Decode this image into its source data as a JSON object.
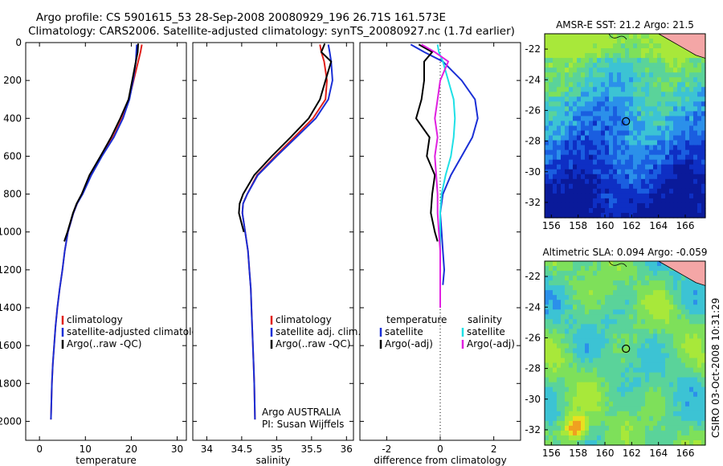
{
  "header": {
    "title_line1": "Argo profile: CS 5901615_53 28-Sep-2008 20080929_196 26.71S 161.573E",
    "title_line2": "Climatology: CARS2006. Satellite-adjusted climatology: synTS_20080927.nc (1.7d earlier)"
  },
  "credit": "CSIRO 03-Oct-2008 10:31:29",
  "colors": {
    "climatology": "#e0201a",
    "satellite": "#1a2fd6",
    "argo": "#000000",
    "satellite_diff_s": "#1fe0e6",
    "argo_diff_s": "#e020e0",
    "land": "#f4a6a6"
  },
  "chart_data": [
    {
      "type": "line",
      "id": "temperature",
      "xlabel": "temperature",
      "xlim": [
        -3,
        32
      ],
      "ylim": [
        0,
        2100
      ],
      "y_reversed": true,
      "xticks": [
        0,
        10,
        20,
        30
      ],
      "yticks": [
        0,
        200,
        400,
        600,
        800,
        1000,
        1200,
        1400,
        1600,
        1800,
        2000
      ],
      "legend": [
        "climatology",
        "satellite-adjusted climatology",
        "Argo(..raw -QC)"
      ],
      "series": [
        {
          "name": "climatology",
          "color_key": "climatology",
          "x": [
            22.3,
            22.0,
            21.5,
            20.5,
            19.5,
            18.0,
            16.0,
            13.5,
            11.2,
            9.3,
            8.2,
            7.4,
            6.2,
            5.5,
            5.0,
            4.4,
            3.9,
            3.5,
            3.2,
            2.9,
            2.7,
            2.5
          ],
          "y": [
            10,
            50,
            100,
            200,
            300,
            400,
            500,
            600,
            700,
            800,
            850,
            900,
            1000,
            1100,
            1200,
            1300,
            1400,
            1500,
            1600,
            1700,
            1800,
            1990
          ]
        },
        {
          "name": "satellite-adjusted climatology",
          "color_key": "satellite",
          "x": [
            21.2,
            21.1,
            21.0,
            20.4,
            19.6,
            18.2,
            16.2,
            13.6,
            11.3,
            9.4,
            8.2,
            7.4,
            6.2,
            5.5,
            5.0,
            4.4,
            3.9,
            3.5,
            3.2,
            2.9,
            2.7,
            2.5
          ],
          "y": [
            10,
            50,
            100,
            200,
            300,
            400,
            500,
            600,
            700,
            800,
            850,
            900,
            1000,
            1100,
            1200,
            1300,
            1400,
            1500,
            1600,
            1700,
            1800,
            1990
          ]
        },
        {
          "name": "Argo(..raw -QC)",
          "color_key": "argo",
          "x": [
            21.5,
            21.4,
            21.0,
            20.2,
            19.4,
            17.6,
            15.6,
            13.3,
            10.9,
            9.2,
            8.1,
            7.3,
            6.1,
            5.4
          ],
          "y": [
            5,
            50,
            100,
            200,
            300,
            400,
            500,
            600,
            700,
            800,
            850,
            900,
            1000,
            1050
          ]
        }
      ]
    },
    {
      "type": "line",
      "id": "salinity",
      "xlabel": "salinity",
      "xlim": [
        33.8,
        36.1
      ],
      "ylim": [
        0,
        2100
      ],
      "y_reversed": true,
      "xticks": [
        34,
        34.5,
        35,
        35.5,
        36
      ],
      "legend": [
        "climatology",
        "satellite adj. clim.",
        "Argo(..raw -QC)"
      ],
      "annotation_line1": "Argo AUSTRALIA",
      "annotation_line2": "PI: Susan Wijffels",
      "series": [
        {
          "name": "climatology",
          "color_key": "climatology",
          "x": [
            35.62,
            35.64,
            35.68,
            35.72,
            35.7,
            35.52,
            35.25,
            34.98,
            34.72,
            34.58,
            34.52,
            34.51,
            34.55,
            34.59,
            34.61,
            34.63,
            34.64,
            34.65,
            34.66,
            34.67,
            34.68,
            34.69
          ],
          "y": [
            10,
            50,
            100,
            200,
            300,
            400,
            500,
            600,
            700,
            800,
            850,
            900,
            1000,
            1100,
            1200,
            1300,
            1400,
            1500,
            1600,
            1700,
            1800,
            1990
          ]
        },
        {
          "name": "satellite adj. clim.",
          "color_key": "satellite",
          "x": [
            35.74,
            35.76,
            35.78,
            35.8,
            35.74,
            35.56,
            35.28,
            35.0,
            34.73,
            34.58,
            34.52,
            34.51,
            34.55,
            34.59,
            34.61,
            34.63,
            34.64,
            34.65,
            34.66,
            34.67,
            34.68,
            34.69
          ],
          "y": [
            10,
            50,
            100,
            200,
            300,
            400,
            500,
            600,
            700,
            800,
            850,
            900,
            1000,
            1100,
            1200,
            1300,
            1400,
            1500,
            1600,
            1700,
            1800,
            1990
          ]
        },
        {
          "name": "Argo(..raw -QC)",
          "color_key": "argo",
          "x": [
            35.69,
            35.64,
            35.78,
            35.7,
            35.62,
            35.46,
            35.2,
            34.93,
            34.68,
            34.52,
            34.47,
            34.46,
            34.53
          ],
          "y": [
            5,
            50,
            100,
            200,
            300,
            400,
            500,
            600,
            700,
            800,
            850,
            900,
            1000
          ]
        }
      ]
    },
    {
      "type": "line",
      "id": "difference",
      "xlabel": "difference from climatology",
      "xlim": [
        -3,
        3
      ],
      "ylim": [
        0,
        2100
      ],
      "y_reversed": true,
      "xticks": [
        -2,
        0,
        2
      ],
      "zero_line": true,
      "legend_temperature_header": "temperature",
      "legend_salinity_header": "salinity",
      "legend_temperature": [
        "satellite",
        "Argo(-adj)"
      ],
      "legend_salinity": [
        "satellite",
        "Argo(-adj)"
      ],
      "series": [
        {
          "name": "satellite",
          "quantity": "temperature",
          "color_key": "satellite",
          "x": [
            -1.1,
            -0.6,
            0.1,
            0.8,
            1.3,
            1.4,
            1.2,
            0.8,
            0.4,
            0.1,
            0.0,
            0.05,
            0.1,
            0.15,
            0.1
          ],
          "y": [
            10,
            50,
            100,
            200,
            300,
            400,
            500,
            600,
            700,
            800,
            900,
            1000,
            1100,
            1200,
            1280
          ]
        },
        {
          "name": "Argo(-adj)",
          "quantity": "temperature",
          "color_key": "argo",
          "x": [
            -0.8,
            -0.3,
            -0.6,
            -0.6,
            -0.7,
            -0.9,
            -0.4,
            -0.5,
            -0.2,
            -0.3,
            -0.35,
            -0.2,
            -0.1
          ],
          "y": [
            10,
            50,
            100,
            200,
            300,
            400,
            500,
            600,
            700,
            800,
            900,
            1000,
            1050
          ]
        },
        {
          "name": "satellite",
          "quantity": "salinity",
          "color_key": "satellite_diff_s",
          "x": [
            -0.1,
            -0.05,
            0.1,
            0.3,
            0.5,
            0.55,
            0.5,
            0.4,
            0.2,
            0.05,
            0.0,
            0.0,
            0.0,
            0.0,
            0.0
          ],
          "y": [
            10,
            50,
            100,
            200,
            300,
            400,
            500,
            600,
            700,
            800,
            900,
            1000,
            1100,
            1200,
            1280
          ]
        },
        {
          "name": "Argo(-adj)",
          "quantity": "salinity",
          "color_key": "argo_diff_s",
          "x": [
            -0.7,
            -0.2,
            0.3,
            0.0,
            -0.1,
            -0.2,
            -0.1,
            -0.2,
            -0.15,
            -0.1,
            -0.1,
            -0.05,
            0.0,
            0.0
          ],
          "y": [
            10,
            50,
            100,
            200,
            300,
            400,
            500,
            600,
            700,
            800,
            900,
            1000,
            1100,
            1400
          ]
        }
      ]
    },
    {
      "type": "heatmap",
      "id": "sst-map",
      "title": "AMSR-E SST: 21.2 Argo: 21.5",
      "xlim": [
        155.5,
        167.5
      ],
      "ylim": [
        -33,
        -21
      ],
      "xticks": [
        156,
        158,
        160,
        162,
        164,
        166
      ],
      "yticks": [
        -22,
        -24,
        -26,
        -28,
        -30,
        -32
      ],
      "marker": {
        "lon": 161.573,
        "lat": -26.71
      },
      "palette": [
        "#0a1a9a",
        "#0e2fc4",
        "#1a5ee0",
        "#2b90ea",
        "#3cc3d4",
        "#5ad39a",
        "#7ee05a",
        "#a8e83a"
      ]
    },
    {
      "type": "heatmap",
      "id": "sla-map",
      "title": "Altimetric SLA: 0.094 Argo: -0.059",
      "xlim": [
        155.5,
        167.5
      ],
      "ylim": [
        -33,
        -21
      ],
      "xticks": [
        156,
        158,
        160,
        162,
        164,
        166
      ],
      "yticks": [
        -22,
        -24,
        -26,
        -28,
        -30,
        -32
      ],
      "marker": {
        "lon": 161.573,
        "lat": -26.71
      },
      "palette": [
        "#1a5ee0",
        "#2b90ea",
        "#3cc3d4",
        "#5ad39a",
        "#7ee05a",
        "#a8e83a",
        "#e8e020",
        "#f0a020",
        "#e04020"
      ]
    }
  ]
}
